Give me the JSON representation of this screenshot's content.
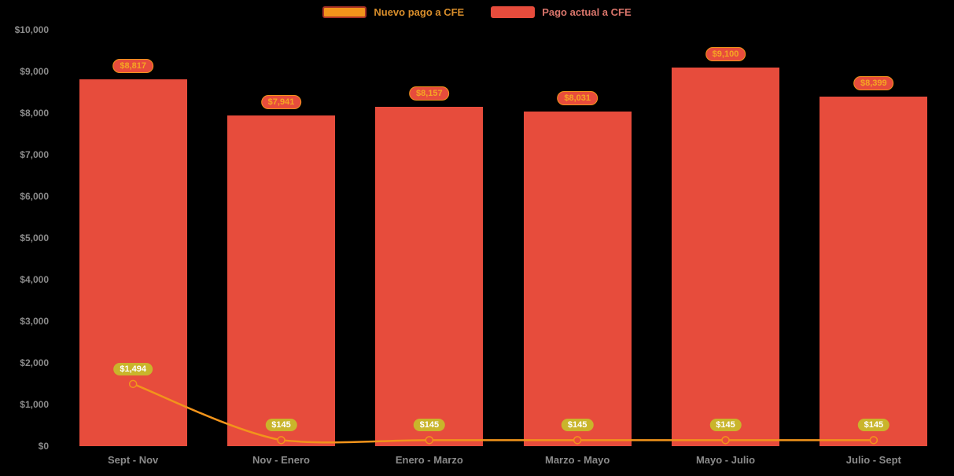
{
  "legend": {
    "items": [
      {
        "label": "Nuevo pago a CFE",
        "swatch_color": "#F2941B",
        "swatch_border": "#A93226",
        "text_color": "#D98E2B"
      },
      {
        "label": "Pago actual a CFE",
        "swatch_color": "#E74C3C",
        "swatch_border": "#E74C3C",
        "text_color": "#D9756B"
      }
    ]
  },
  "axes": {
    "y_tick_labels": [
      "$0",
      "$1,000",
      "$2,000",
      "$3,000",
      "$4,000",
      "$5,000",
      "$6,000",
      "$7,000",
      "$8,000",
      "$9,000",
      "$10,000"
    ],
    "x_labels": [
      "Sept - Nov",
      "Nov - Enero",
      "Enero - Marzo",
      "Marzo - Mayo",
      "Mayo - Julio",
      "Julio - Sept"
    ],
    "text_color": "#8B8B8B"
  },
  "chart_data": {
    "type": "bar",
    "title": "",
    "xlabel": "",
    "ylabel": "",
    "categories": [
      "Sept - Nov",
      "Nov - Enero",
      "Enero - Marzo",
      "Marzo - Mayo",
      "Mayo - Julio",
      "Julio - Sept"
    ],
    "series": [
      {
        "name": "Pago actual a CFE",
        "type": "bar",
        "color": "#E74C3C",
        "values": [
          8817,
          7941,
          8157,
          8031,
          9100,
          8399
        ],
        "data_labels": [
          "$8,817",
          "$7,941",
          "$8,157",
          "$8,031",
          "$9,100",
          "$8,399"
        ],
        "label_style": {
          "bg": "#E74C3C",
          "border": "#F2941B",
          "text": "#F5A623"
        }
      },
      {
        "name": "Nuevo pago a CFE",
        "type": "line",
        "color": "#F2941B",
        "values": [
          1494,
          145,
          145,
          145,
          145,
          145
        ],
        "data_labels": [
          "$1,494",
          "$145",
          "$145",
          "$145",
          "$145",
          "$145"
        ],
        "label_style": {
          "bg": "#C9B52B",
          "border": "#C9B52B",
          "text": "#FFFFFF"
        },
        "marker": {
          "fill": "#E74C3C",
          "stroke": "#F2941B"
        }
      }
    ],
    "ylim": [
      0,
      10000
    ],
    "ytick_step": 1000,
    "grid": false,
    "legend_position": "top",
    "background": "#000000"
  }
}
